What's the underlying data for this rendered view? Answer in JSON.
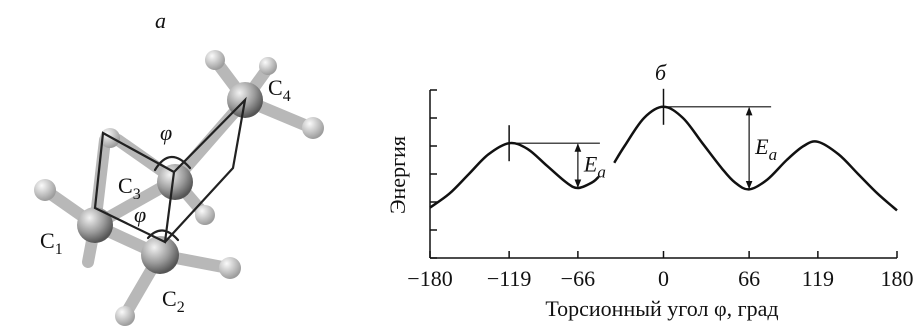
{
  "diagram": {
    "label": "а",
    "atoms": [
      {
        "base": "C",
        "sub": "1"
      },
      {
        "base": "C",
        "sub": "2"
      },
      {
        "base": "C",
        "sub": "3"
      },
      {
        "base": "C",
        "sub": "4"
      }
    ],
    "angle_labels": [
      "φ",
      "φ"
    ]
  },
  "chart_data": {
    "type": "line",
    "title": "б",
    "ylabel": "Энергия",
    "xlabel": "Торсионный угол φ, град",
    "x": [
      -180,
      -165,
      -150,
      -135,
      -119,
      -105,
      -90,
      -75,
      -66,
      -55,
      -50,
      -44,
      -38,
      -30,
      -15,
      0,
      15,
      30,
      45,
      55,
      66,
      80,
      95,
      108,
      119,
      135,
      150,
      165,
      180
    ],
    "values": [
      1.8,
      2.3,
      3.0,
      3.7,
      4.1,
      3.9,
      3.3,
      2.7,
      2.5,
      2.7,
      2.9,
      null,
      3.4,
      4.0,
      5.0,
      5.4,
      5.0,
      4.1,
      3.2,
      2.7,
      2.45,
      2.8,
      3.5,
      4.0,
      4.15,
      3.7,
      3.0,
      2.3,
      1.7
    ],
    "color": "#111111",
    "xlim": [
      -180,
      180
    ],
    "xticks": [
      {
        "value": -180,
        "label": "−180"
      },
      {
        "value": -119,
        "label": "−119"
      },
      {
        "value": -66,
        "label": "−66"
      },
      0,
      66,
      119,
      180
    ],
    "ylim": [
      0,
      6
    ],
    "yticks": [
      0,
      1,
      2,
      3,
      4,
      5,
      6
    ],
    "annotations": [
      {
        "text": "E",
        "sub": "a"
      },
      {
        "text": "E",
        "sub": "a"
      }
    ]
  }
}
